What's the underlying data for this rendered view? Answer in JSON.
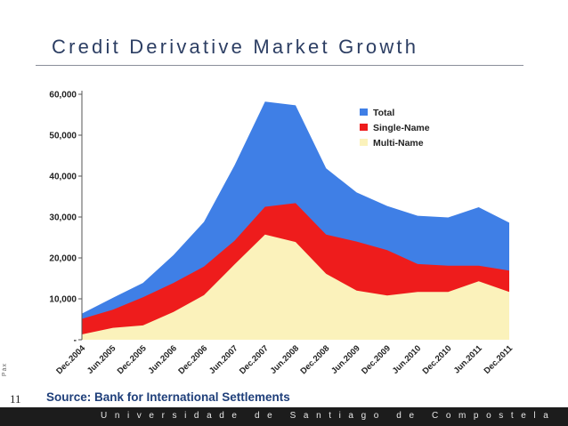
{
  "slide": {
    "title": "Credit Derivative Market Growth",
    "source": "Source:  Bank for International Settlements",
    "page_label": "Páx",
    "page_number": "11",
    "footer": "Universidade de Santiago de Compostela"
  },
  "colors": {
    "total": "#3f7fe6",
    "single_name": "#ee1c1c",
    "multi_name": "#fbf2bb",
    "title": "#2c3e63",
    "source": "#1f3f7a"
  },
  "chart_data": {
    "type": "area",
    "stacked": false,
    "title": "",
    "xlabel": "",
    "ylabel": "",
    "categories": [
      "Dec.2004",
      "Jun.2005",
      "Dec.2005",
      "Jun.2006",
      "Dec.2006",
      "Jun.2007",
      "Dec.2007",
      "Jun.2008",
      "Dec.2008",
      "Jun.2009",
      "Dec.2009",
      "Jun.2010",
      "Dec.2010",
      "Jun.2011",
      "Dec.2011"
    ],
    "ylim": [
      0,
      60000
    ],
    "yticks": [
      0,
      10000,
      20000,
      30000,
      40000,
      50000,
      60000
    ],
    "ytick_labels": [
      "-",
      "10,000",
      "20,000",
      "30,000",
      "40,000",
      "50,000",
      "60,000"
    ],
    "grid": false,
    "legend": "top-right",
    "series": [
      {
        "name": "Total",
        "key": "total",
        "values": [
          6400,
          10200,
          13900,
          20700,
          28800,
          42600,
          58200,
          57300,
          41900,
          36000,
          32700,
          30300,
          29900,
          32400,
          28600
        ]
      },
      {
        "name": "Single-Name",
        "key": "single_name",
        "values": [
          5100,
          7300,
          10400,
          13900,
          17900,
          24200,
          32500,
          33400,
          25700,
          24000,
          21900,
          18500,
          18100,
          18100,
          16900
        ]
      },
      {
        "name": "Multi-Name",
        "key": "multi_name",
        "values": [
          1300,
          2900,
          3500,
          6800,
          10900,
          18400,
          25700,
          23900,
          16100,
          12000,
          10800,
          11700,
          11700,
          14300,
          11700
        ]
      }
    ]
  }
}
